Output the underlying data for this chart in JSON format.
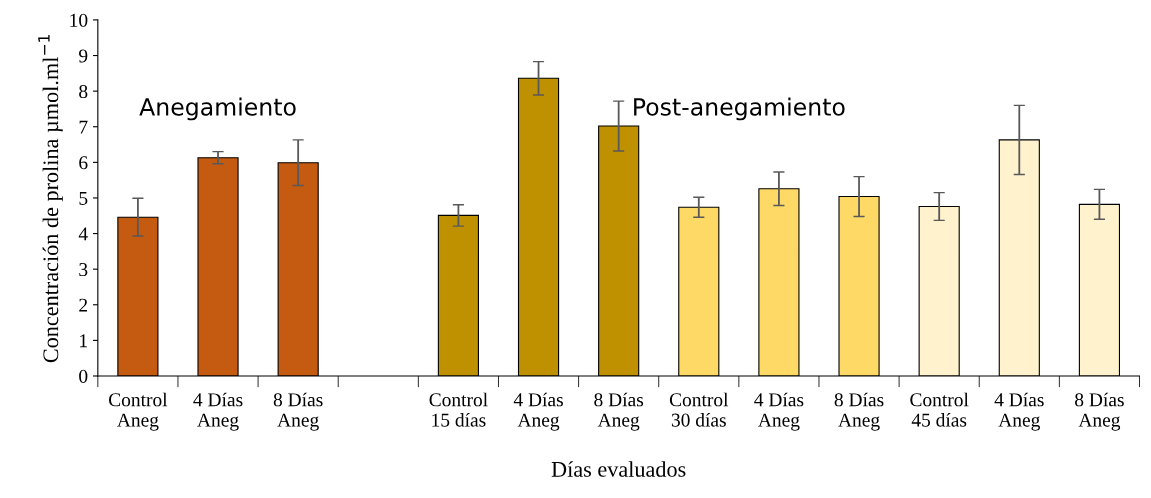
{
  "chart_data": {
    "type": "bar",
    "xlabel": "Días evaluados",
    "ylabel": "Concentración de prolina µmol.ml$^{−1}$",
    "categories": [
      "Control\nAneg",
      "4 Días\nAneg",
      "8 Días\nAneg",
      null,
      "Control\n15 días",
      "4 Días\nAneg",
      "8 Días\nAneg",
      "Control\n30 días",
      "4 Días\nAneg",
      "8 Días\nAneg",
      "Control\n45 días",
      "4 Días\nAneg",
      "8 Días\nAneg"
    ],
    "values": [
      4.46,
      6.13,
      5.99,
      null,
      4.51,
      8.36,
      7.02,
      4.74,
      5.26,
      5.04,
      4.76,
      6.63,
      4.82
    ],
    "errors": [
      0.53,
      0.17,
      0.64,
      null,
      0.3,
      0.47,
      0.7,
      0.28,
      0.47,
      0.56,
      0.39,
      0.97,
      0.42
    ],
    "colors": [
      "#c55a11",
      "#c55a11",
      "#c55a11",
      "#c55a11",
      "#bf9000",
      "#bf9000",
      "#bf9000",
      "#ffd966",
      "#ffd966",
      "#ffd966",
      "#fff2cc",
      "#fff2cc",
      "#fff2cc"
    ],
    "annotations": [
      "Anegamiento",
      "Post-anegamiento"
    ],
    "ylim": [
      0,
      10
    ],
    "yticks": [
      0,
      1,
      2,
      3,
      4,
      5,
      6,
      7,
      8,
      9,
      10
    ],
    "grid": false,
    "legend": false
  }
}
